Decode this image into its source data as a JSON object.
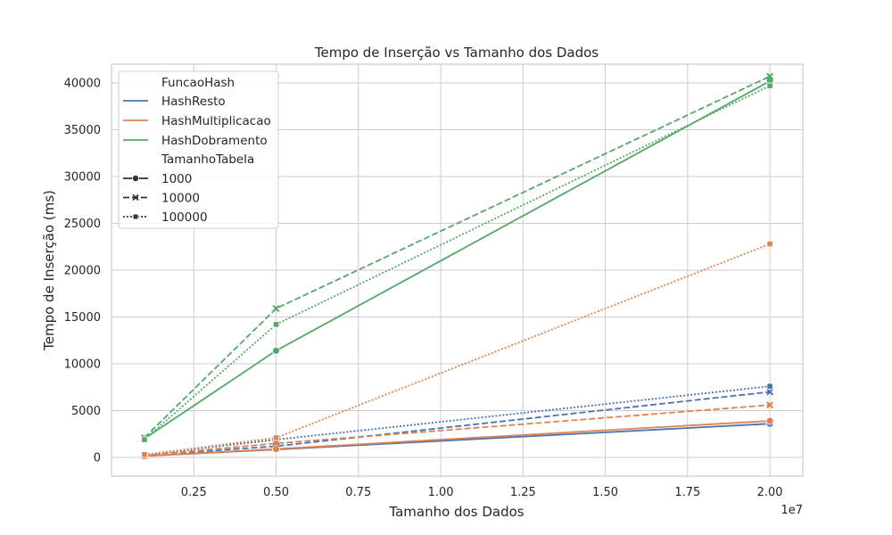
{
  "chart_data": {
    "type": "line",
    "title": "Tempo de Inserção vs Tamanho dos Dados",
    "xlabel": "Tamanho dos Dados",
    "ylabel": "Tempo de Inserção (ms)",
    "x_offset_label": "1e7",
    "xlim": [
      0,
      21000000
    ],
    "ylim": [
      -2000,
      42000
    ],
    "x_ticks": [
      2500000,
      5000000,
      7500000,
      10000000,
      12500000,
      15000000,
      17500000,
      20000000
    ],
    "x_tick_labels": [
      "0.25",
      "0.50",
      "0.75",
      "1.00",
      "1.25",
      "1.50",
      "1.75",
      "2.00"
    ],
    "y_ticks": [
      0,
      5000,
      10000,
      15000,
      20000,
      25000,
      30000,
      35000,
      40000
    ],
    "y_tick_labels": [
      "0",
      "5000",
      "10000",
      "15000",
      "20000",
      "25000",
      "30000",
      "35000",
      "40000"
    ],
    "grid": true,
    "legend_position": "top-left",
    "x": [
      1000000,
      5000000,
      20000000
    ],
    "hue_title": "FuncaoHash",
    "style_title": "TamanhoTabela",
    "hue_entries": [
      {
        "name": "HashResto",
        "color": "#4c72b0"
      },
      {
        "name": "HashMultiplicacao",
        "color": "#dd8452"
      },
      {
        "name": "HashDobramento",
        "color": "#55a868"
      }
    ],
    "style_entries": [
      {
        "name": "1000",
        "dash": "solid",
        "marker": "circle"
      },
      {
        "name": "10000",
        "dash": "dashed",
        "marker": "x"
      },
      {
        "name": "100000",
        "dash": "dotted",
        "marker": "square"
      }
    ],
    "series": [
      {
        "hue": "HashResto",
        "style": "1000",
        "values": [
          150,
          850,
          3600
        ]
      },
      {
        "hue": "HashResto",
        "style": "10000",
        "values": [
          200,
          1200,
          7000
        ]
      },
      {
        "hue": "HashResto",
        "style": "100000",
        "values": [
          250,
          1900,
          7600
        ]
      },
      {
        "hue": "HashMultiplicacao",
        "style": "1000",
        "values": [
          150,
          900,
          3900
        ]
      },
      {
        "hue": "HashMultiplicacao",
        "style": "10000",
        "values": [
          200,
          1500,
          5600
        ]
      },
      {
        "hue": "HashMultiplicacao",
        "style": "100000",
        "values": [
          300,
          2100,
          22800
        ]
      },
      {
        "hue": "HashDobramento",
        "style": "1000",
        "values": [
          2000,
          11400,
          40200
        ]
      },
      {
        "hue": "HashDobramento",
        "style": "10000",
        "values": [
          2100,
          15900,
          40700
        ]
      },
      {
        "hue": "HashDobramento",
        "style": "100000",
        "values": [
          1900,
          14200,
          39700
        ]
      }
    ]
  }
}
